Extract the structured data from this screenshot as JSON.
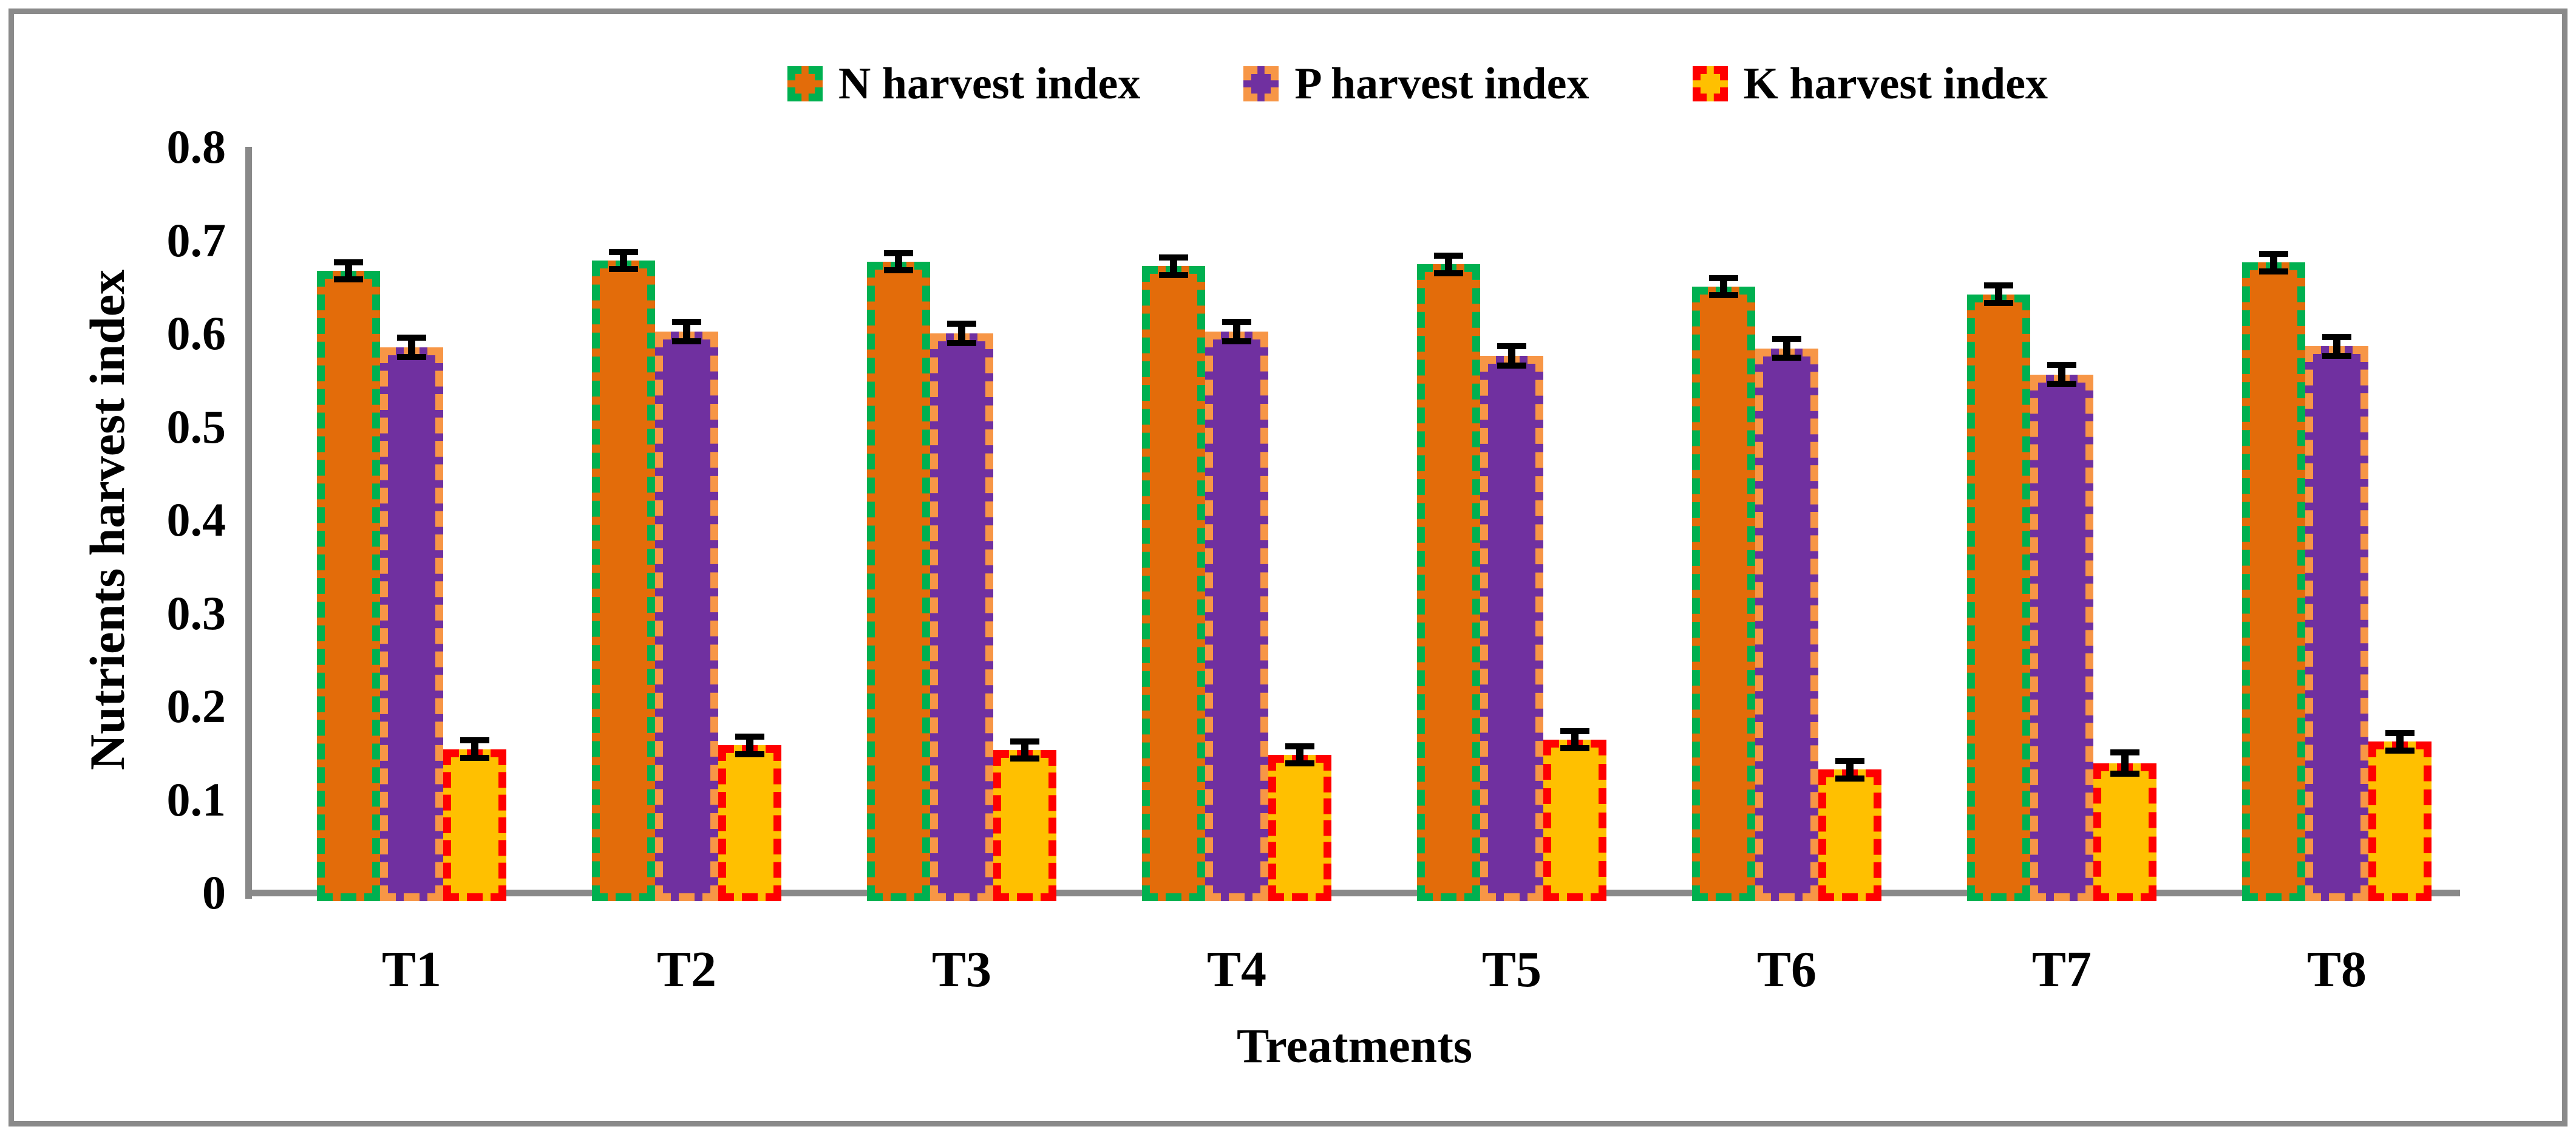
{
  "figure": {
    "background": "#ffffff",
    "frame_color": "#8a8a8a",
    "axis_color": "#898989",
    "error_bar_color": "#000000"
  },
  "chart_data": {
    "type": "bar",
    "title": "",
    "xlabel": "Treatments",
    "ylabel": "Nutrients harvest index",
    "categories": [
      "T1",
      "T2",
      "T3",
      "T4",
      "T5",
      "T6",
      "T7",
      "T8"
    ],
    "yticks": [
      "0",
      "0.1",
      "0.2",
      "0.3",
      "0.4",
      "0.5",
      "0.6",
      "0.7",
      "0.8"
    ],
    "ylim": [
      0,
      0.8
    ],
    "grid": false,
    "legend_position": "top",
    "series": [
      {
        "name": "N harvest index",
        "fill": "#E36C0A",
        "border": "#00B050",
        "values": [
          0.667,
          0.678,
          0.677,
          0.672,
          0.674,
          0.65,
          0.642,
          0.676
        ],
        "errors": [
          0.006,
          0.006,
          0.006,
          0.006,
          0.006,
          0.006,
          0.006,
          0.006
        ]
      },
      {
        "name": "P harvest index",
        "fill": "#7030A0",
        "border": "#F79646",
        "values": [
          0.585,
          0.602,
          0.6,
          0.602,
          0.576,
          0.584,
          0.556,
          0.586
        ],
        "errors": [
          0.007,
          0.007,
          0.007,
          0.007,
          0.007,
          0.007,
          0.007,
          0.007
        ]
      },
      {
        "name": "K harvest index",
        "fill": "#FFC000",
        "border": "#FF0000",
        "values": [
          0.154,
          0.158,
          0.153,
          0.148,
          0.164,
          0.132,
          0.139,
          0.162
        ],
        "errors": [
          0.006,
          0.006,
          0.006,
          0.006,
          0.006,
          0.006,
          0.008,
          0.006
        ]
      }
    ]
  }
}
